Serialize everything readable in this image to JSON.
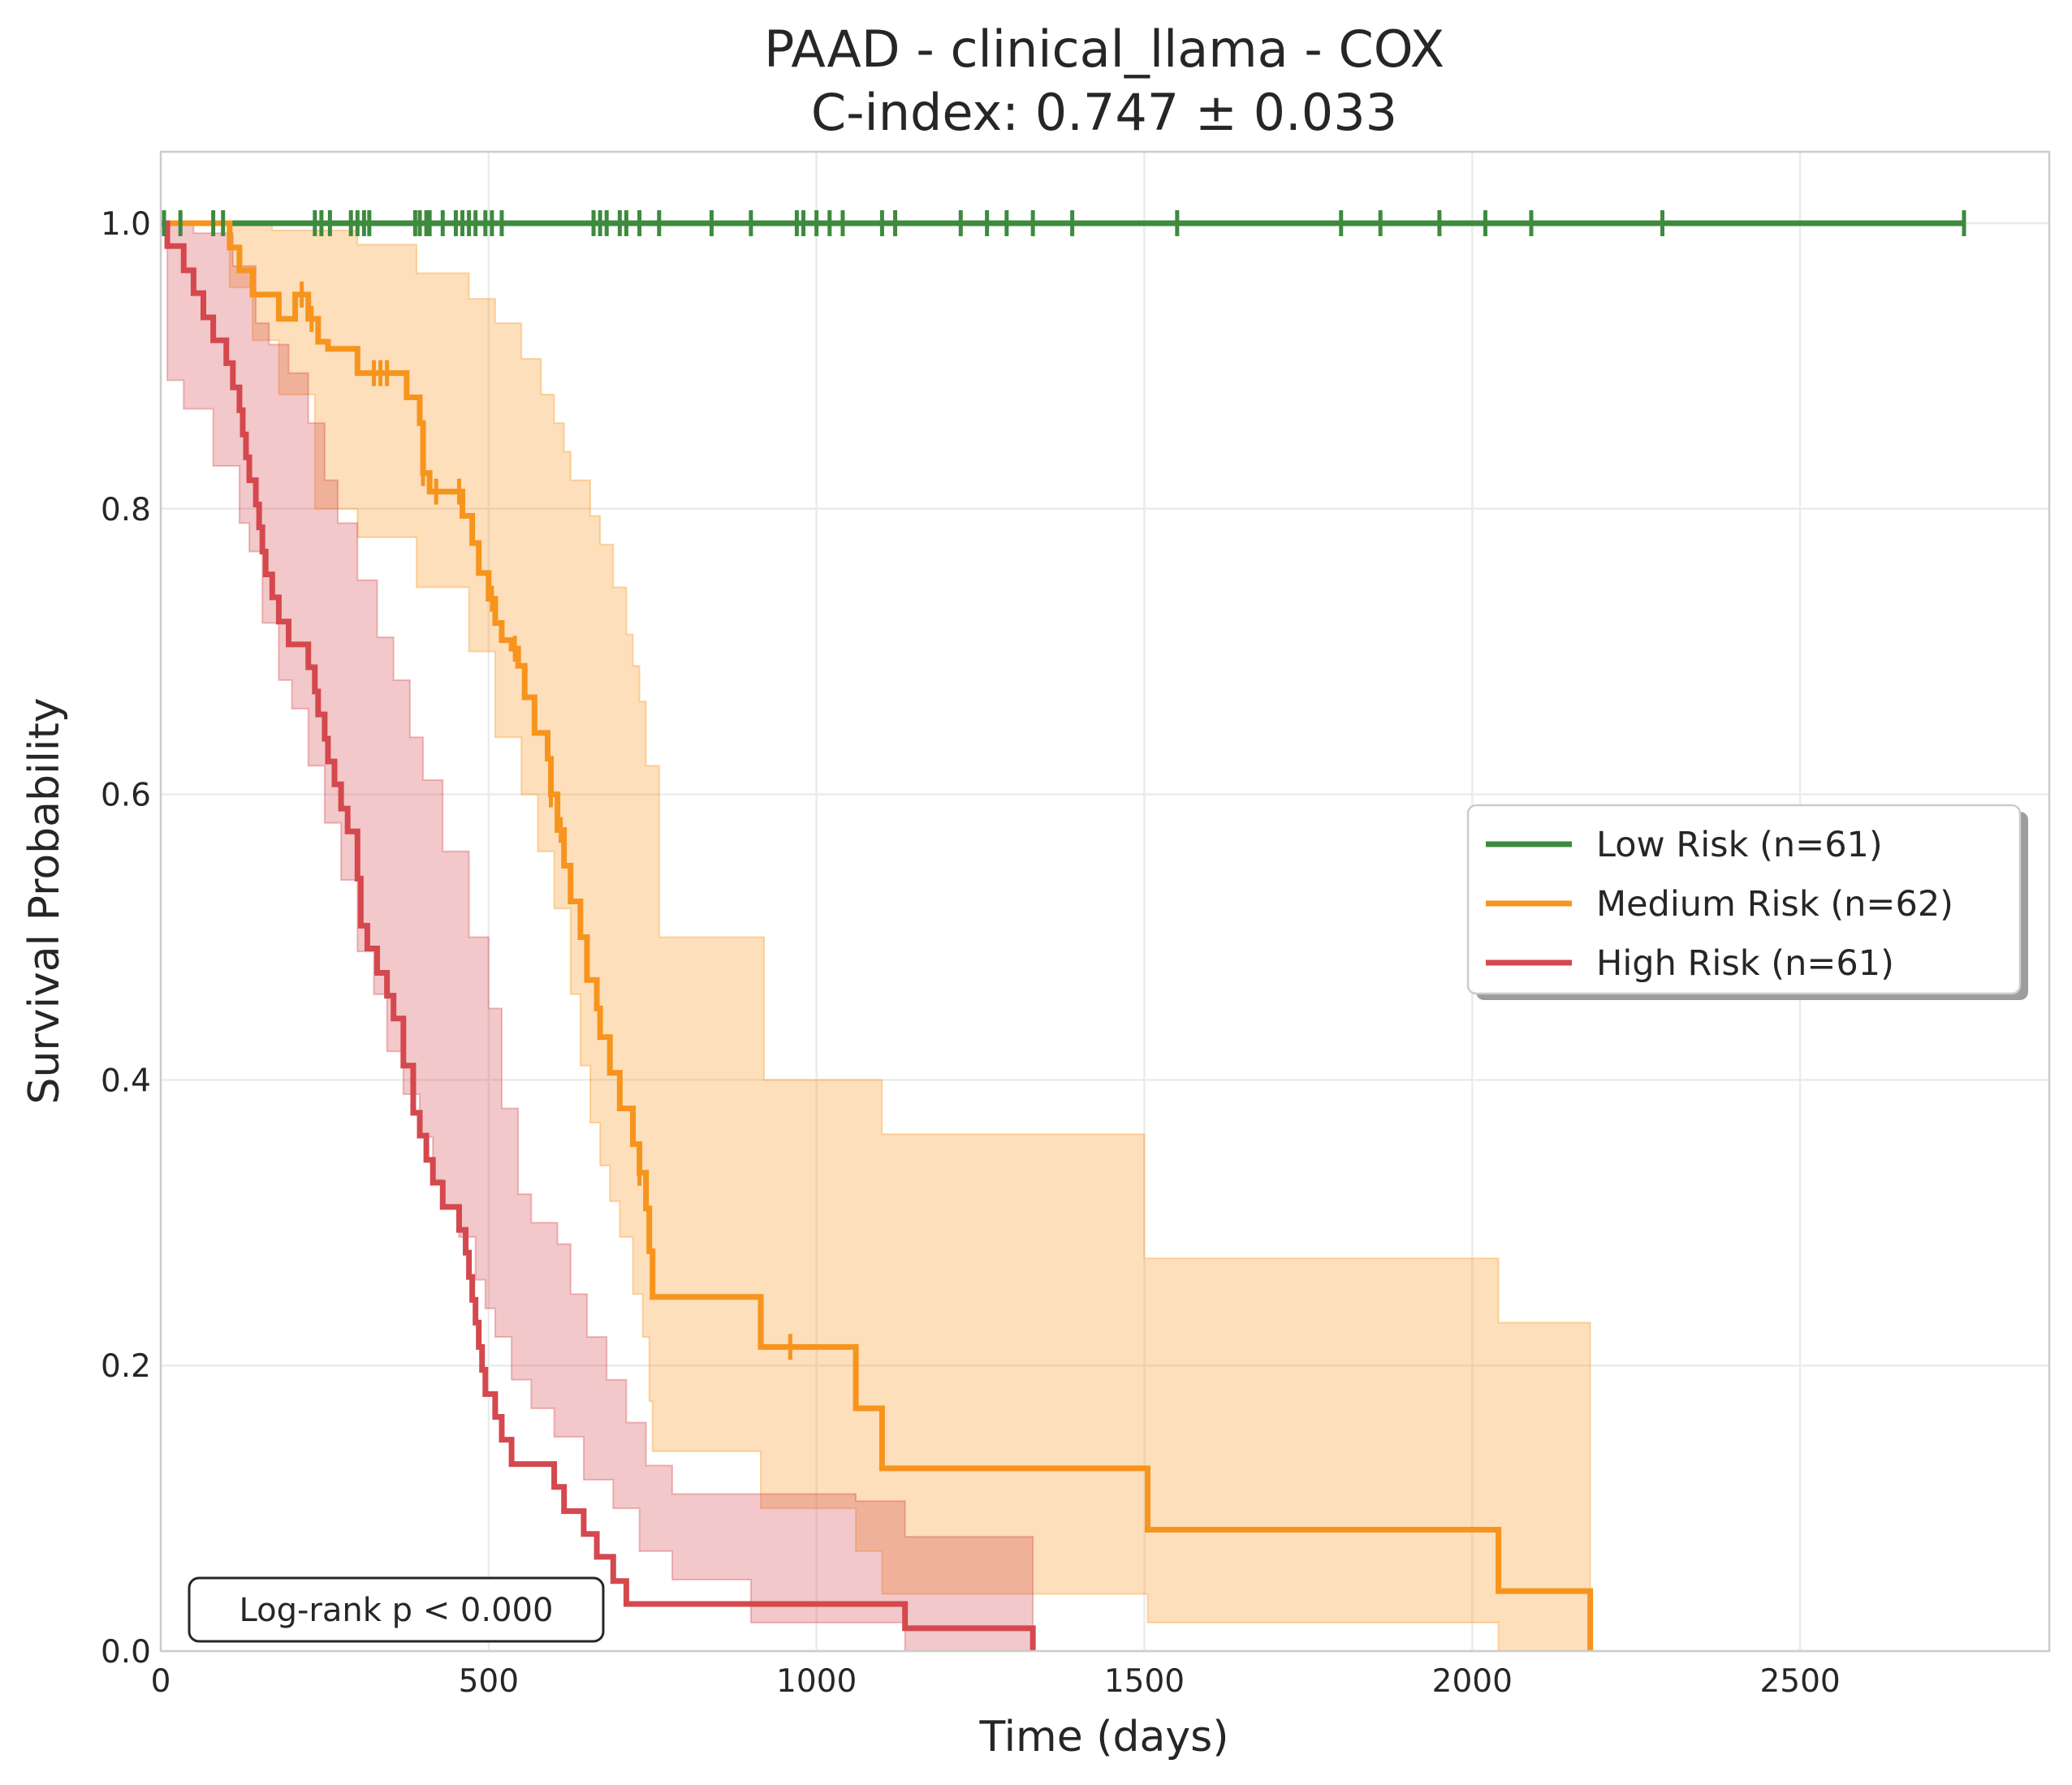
{
  "chart_data": {
    "type": "line",
    "title": "PAAD - clinical_llama - COX",
    "subtitle": "C-index: 0.747 ± 0.033",
    "xlabel": "Time (days)",
    "ylabel": "Survival Probability",
    "xlim": [
      0,
      2880
    ],
    "ylim": [
      0,
      1.05
    ],
    "x_ticks": [
      0,
      500,
      1000,
      1500,
      2000,
      2500
    ],
    "y_ticks": [
      0.0,
      0.2,
      0.4,
      0.6,
      0.8,
      1.0
    ],
    "x_tick_labels": [
      "0",
      "500",
      "1000",
      "1500",
      "2000",
      "2500"
    ],
    "y_tick_labels": [
      "0.0",
      "0.2",
      "0.4",
      "0.6",
      "0.8",
      "1.0"
    ],
    "grid": true,
    "legend_position": "right",
    "annotation": "Log-rank p < 0.000",
    "series": [
      {
        "name": "Low Risk (n=61)",
        "color": "#3e8a3e",
        "steps": [
          [
            0,
            1.0
          ],
          [
            2750,
            1.0
          ]
        ],
        "ci_upper": [],
        "ci_lower": [],
        "censor_times": [
          5,
          30,
          80,
          95,
          235,
          245,
          258,
          290,
          300,
          310,
          318,
          388,
          395,
          405,
          410,
          430,
          450,
          460,
          470,
          480,
          495,
          505,
          520,
          660,
          670,
          680,
          700,
          710,
          730,
          760,
          840,
          900,
          970,
          980,
          1000,
          1020,
          1040,
          1100,
          1120,
          1220,
          1260,
          1290,
          1330,
          1390,
          1550,
          1800,
          1860,
          1950,
          2020,
          2090,
          2290,
          2750
        ]
      },
      {
        "name": "Medium Risk (n=62)",
        "color": "#f7941d",
        "steps": [
          [
            0,
            1.0
          ],
          [
            105,
            0.983
          ],
          [
            120,
            0.967
          ],
          [
            140,
            0.95
          ],
          [
            180,
            0.933
          ],
          [
            205,
            0.95
          ],
          [
            225,
            0.933
          ],
          [
            240,
            0.917
          ],
          [
            255,
            0.912
          ],
          [
            300,
            0.895
          ],
          [
            325,
            0.895
          ],
          [
            375,
            0.878
          ],
          [
            395,
            0.86
          ],
          [
            400,
            0.825
          ],
          [
            410,
            0.812
          ],
          [
            460,
            0.795
          ],
          [
            475,
            0.776
          ],
          [
            485,
            0.755
          ],
          [
            500,
            0.737
          ],
          [
            510,
            0.72
          ],
          [
            520,
            0.708
          ],
          [
            535,
            0.702
          ],
          [
            545,
            0.69
          ],
          [
            555,
            0.668
          ],
          [
            570,
            0.643
          ],
          [
            590,
            0.625
          ],
          [
            595,
            0.6
          ],
          [
            605,
            0.575
          ],
          [
            615,
            0.55
          ],
          [
            625,
            0.525
          ],
          [
            640,
            0.5
          ],
          [
            650,
            0.47
          ],
          [
            665,
            0.45
          ],
          [
            670,
            0.43
          ],
          [
            685,
            0.405
          ],
          [
            700,
            0.38
          ],
          [
            720,
            0.355
          ],
          [
            730,
            0.335
          ],
          [
            740,
            0.31
          ],
          [
            745,
            0.28
          ],
          [
            750,
            0.248
          ],
          [
            915,
            0.213
          ],
          [
            1060,
            0.17
          ],
          [
            1100,
            0.128
          ],
          [
            1505,
            0.085
          ],
          [
            2040,
            0.042
          ],
          [
            2180,
            0.0
          ]
        ],
        "ci_upper": [
          [
            0,
            1.0
          ],
          [
            105,
            1.0
          ],
          [
            170,
            0.995
          ],
          [
            300,
            0.985
          ],
          [
            390,
            0.965
          ],
          [
            470,
            0.947
          ],
          [
            510,
            0.93
          ],
          [
            550,
            0.905
          ],
          [
            580,
            0.88
          ],
          [
            600,
            0.86
          ],
          [
            615,
            0.84
          ],
          [
            625,
            0.82
          ],
          [
            655,
            0.795
          ],
          [
            670,
            0.775
          ],
          [
            690,
            0.745
          ],
          [
            710,
            0.712
          ],
          [
            720,
            0.69
          ],
          [
            730,
            0.665
          ],
          [
            740,
            0.62
          ],
          [
            760,
            0.5
          ],
          [
            920,
            0.4
          ],
          [
            1100,
            0.362
          ],
          [
            1500,
            0.275
          ],
          [
            2040,
            0.23
          ],
          [
            2180,
            0.175
          ]
        ],
        "ci_lower": [
          [
            0,
            1.0
          ],
          [
            105,
            0.955
          ],
          [
            140,
            0.918
          ],
          [
            180,
            0.88
          ],
          [
            235,
            0.8
          ],
          [
            300,
            0.78
          ],
          [
            390,
            0.745
          ],
          [
            470,
            0.7
          ],
          [
            510,
            0.64
          ],
          [
            550,
            0.6
          ],
          [
            575,
            0.56
          ],
          [
            600,
            0.52
          ],
          [
            625,
            0.46
          ],
          [
            640,
            0.41
          ],
          [
            655,
            0.37
          ],
          [
            670,
            0.34
          ],
          [
            685,
            0.315
          ],
          [
            700,
            0.29
          ],
          [
            720,
            0.25
          ],
          [
            735,
            0.22
          ],
          [
            745,
            0.175
          ],
          [
            750,
            0.14
          ],
          [
            915,
            0.1
          ],
          [
            1060,
            0.07
          ],
          [
            1100,
            0.04
          ],
          [
            1505,
            0.02
          ],
          [
            2040,
            0.0
          ],
          [
            2180,
            0.0
          ]
        ],
        "censor_times": [
          215,
          230,
          325,
          335,
          345,
          400,
          420,
          455,
          505,
          540,
          595,
          610,
          730,
          960
        ]
      },
      {
        "name": "High Risk (n=61)",
        "color": "#d4484e",
        "steps": [
          [
            0,
            1.0
          ],
          [
            10,
            0.984
          ],
          [
            35,
            0.967
          ],
          [
            50,
            0.951
          ],
          [
            65,
            0.934
          ],
          [
            80,
            0.918
          ],
          [
            100,
            0.902
          ],
          [
            110,
            0.885
          ],
          [
            120,
            0.869
          ],
          [
            125,
            0.852
          ],
          [
            130,
            0.836
          ],
          [
            135,
            0.82
          ],
          [
            145,
            0.803
          ],
          [
            150,
            0.787
          ],
          [
            155,
            0.77
          ],
          [
            160,
            0.754
          ],
          [
            170,
            0.738
          ],
          [
            180,
            0.721
          ],
          [
            195,
            0.705
          ],
          [
            225,
            0.689
          ],
          [
            235,
            0.672
          ],
          [
            240,
            0.656
          ],
          [
            250,
            0.639
          ],
          [
            255,
            0.623
          ],
          [
            265,
            0.607
          ],
          [
            275,
            0.59
          ],
          [
            285,
            0.574
          ],
          [
            300,
            0.541
          ],
          [
            305,
            0.508
          ],
          [
            315,
            0.492
          ],
          [
            330,
            0.475
          ],
          [
            345,
            0.459
          ],
          [
            355,
            0.443
          ],
          [
            370,
            0.41
          ],
          [
            385,
            0.377
          ],
          [
            395,
            0.361
          ],
          [
            405,
            0.344
          ],
          [
            415,
            0.328
          ],
          [
            430,
            0.311
          ],
          [
            455,
            0.295
          ],
          [
            465,
            0.279
          ],
          [
            470,
            0.262
          ],
          [
            475,
            0.246
          ],
          [
            480,
            0.23
          ],
          [
            485,
            0.213
          ],
          [
            490,
            0.197
          ],
          [
            495,
            0.18
          ],
          [
            510,
            0.164
          ],
          [
            520,
            0.148
          ],
          [
            535,
            0.131
          ],
          [
            600,
            0.115
          ],
          [
            615,
            0.098
          ],
          [
            645,
            0.082
          ],
          [
            665,
            0.066
          ],
          [
            690,
            0.049
          ],
          [
            710,
            0.033
          ],
          [
            1135,
            0.016
          ],
          [
            1330,
            0.0
          ]
        ],
        "ci_upper": [
          [
            0,
            1.0
          ],
          [
            50,
            0.993
          ],
          [
            110,
            0.97
          ],
          [
            145,
            0.93
          ],
          [
            165,
            0.915
          ],
          [
            195,
            0.895
          ],
          [
            225,
            0.86
          ],
          [
            250,
            0.82
          ],
          [
            270,
            0.79
          ],
          [
            300,
            0.75
          ],
          [
            330,
            0.71
          ],
          [
            355,
            0.68
          ],
          [
            380,
            0.64
          ],
          [
            400,
            0.61
          ],
          [
            430,
            0.56
          ],
          [
            470,
            0.5
          ],
          [
            500,
            0.45
          ],
          [
            520,
            0.38
          ],
          [
            545,
            0.32
          ],
          [
            565,
            0.3
          ],
          [
            605,
            0.285
          ],
          [
            625,
            0.25
          ],
          [
            650,
            0.22
          ],
          [
            680,
            0.19
          ],
          [
            710,
            0.16
          ],
          [
            740,
            0.13
          ],
          [
            780,
            0.11
          ],
          [
            1060,
            0.105
          ],
          [
            1135,
            0.08
          ],
          [
            1330,
            0.08
          ]
        ],
        "ci_lower": [
          [
            0,
            1.0
          ],
          [
            10,
            0.89
          ],
          [
            35,
            0.87
          ],
          [
            80,
            0.83
          ],
          [
            120,
            0.79
          ],
          [
            135,
            0.77
          ],
          [
            155,
            0.72
          ],
          [
            180,
            0.68
          ],
          [
            200,
            0.66
          ],
          [
            225,
            0.62
          ],
          [
            250,
            0.58
          ],
          [
            275,
            0.54
          ],
          [
            300,
            0.49
          ],
          [
            325,
            0.46
          ],
          [
            345,
            0.42
          ],
          [
            370,
            0.39
          ],
          [
            395,
            0.36
          ],
          [
            415,
            0.33
          ],
          [
            430,
            0.31
          ],
          [
            455,
            0.29
          ],
          [
            480,
            0.26
          ],
          [
            495,
            0.24
          ],
          [
            510,
            0.22
          ],
          [
            535,
            0.19
          ],
          [
            565,
            0.17
          ],
          [
            600,
            0.15
          ],
          [
            645,
            0.12
          ],
          [
            690,
            0.1
          ],
          [
            730,
            0.07
          ],
          [
            780,
            0.05
          ],
          [
            900,
            0.02
          ],
          [
            1135,
            0.0
          ],
          [
            1330,
            0.0
          ]
        ],
        "censor_times": []
      }
    ]
  }
}
